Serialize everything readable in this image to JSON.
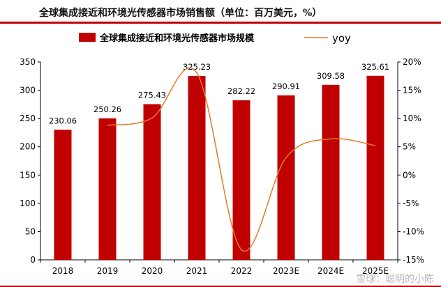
{
  "header": {
    "title": "全球集成接近和环境光传感器市场销售额（单位：百万美元，%）"
  },
  "chart_data": {
    "type": "bar",
    "categories": [
      "2018",
      "2019",
      "2020",
      "2021",
      "2022",
      "2023E",
      "2024E",
      "2025E"
    ],
    "series": [
      {
        "name": "全球集成接近和环境光传感器市场规模",
        "kind": "bar",
        "axis": "left",
        "color": "#c00000",
        "values": [
          230.06,
          250.26,
          275.43,
          325.23,
          282.22,
          290.91,
          309.58,
          325.61
        ],
        "labels": [
          "230.06",
          "250.26",
          "275.43",
          "325.23",
          "282.22",
          "290.91",
          "309.58",
          "325.61"
        ]
      },
      {
        "name": "yoy",
        "kind": "line",
        "axis": "right",
        "color": "#e07b2a",
        "values": [
          null,
          8.8,
          10.1,
          18.1,
          -13.2,
          3.1,
          6.4,
          5.2
        ]
      }
    ],
    "left_axis": {
      "ylim": [
        0,
        350
      ],
      "ticks": [
        0,
        50,
        100,
        150,
        200,
        250,
        300,
        350
      ],
      "tick_labels": [
        "0",
        "50",
        "100",
        "150",
        "200",
        "250",
        "300",
        "350"
      ]
    },
    "right_axis": {
      "ylim": [
        -15,
        20
      ],
      "ticks": [
        -15,
        -10,
        -5,
        0,
        5,
        10,
        15,
        20
      ],
      "tick_labels": [
        "-15%",
        "-10%",
        "-5%",
        "0%",
        "5%",
        "10%",
        "15%",
        "20%"
      ]
    },
    "grid": false,
    "legend": "top-center"
  },
  "watermark": "雪球：聪明的小陈"
}
